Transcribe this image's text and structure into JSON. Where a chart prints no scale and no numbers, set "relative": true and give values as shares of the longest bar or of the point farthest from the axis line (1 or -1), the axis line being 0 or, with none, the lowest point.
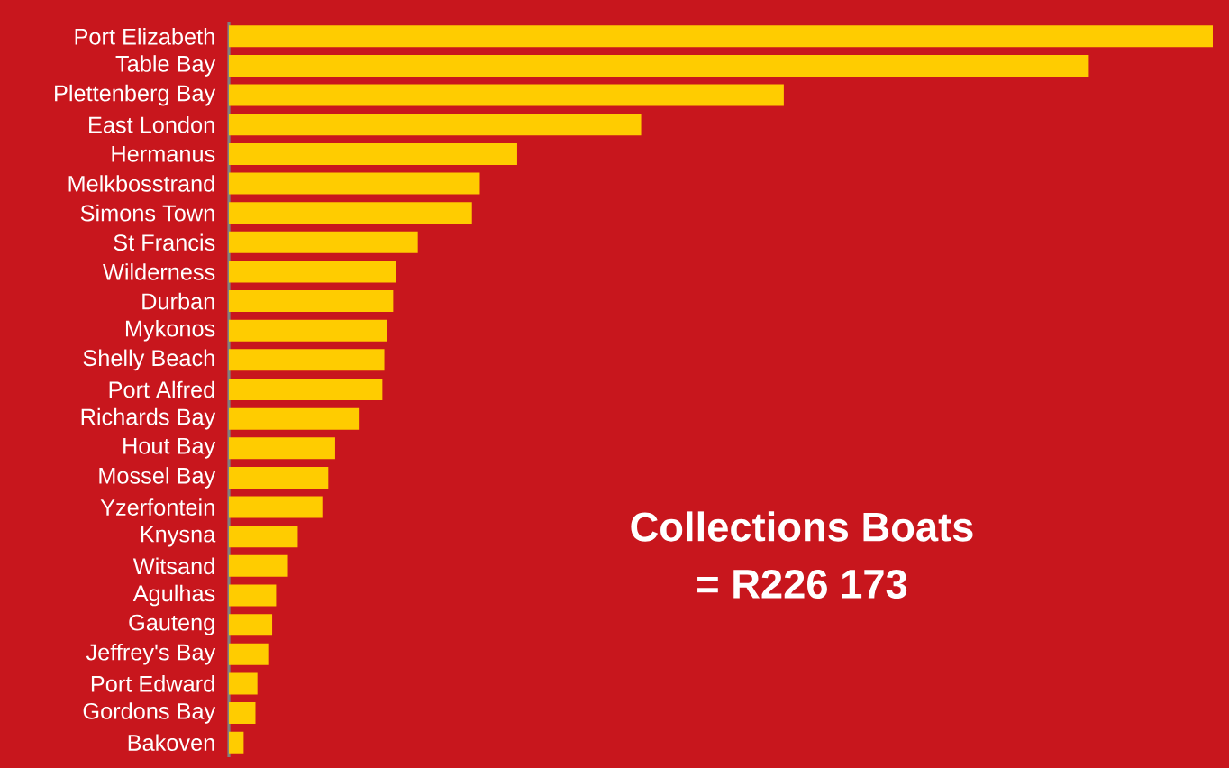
{
  "chart_data": {
    "type": "bar",
    "orientation": "horizontal",
    "relative": true,
    "color": "#ffcc00",
    "categories": [
      "Port Elizabeth",
      "Table Bay",
      "Plettenberg Bay",
      "East London",
      "Hermanus",
      "Melkbosstrand",
      "Simons Town",
      "St Francis",
      "Wilderness",
      "Durban",
      "Mykonos",
      "Shelly Beach",
      "Port Alfred",
      "Richards Bay",
      "Hout Bay",
      "Mossel Bay",
      "Yzerfontein",
      "Knysna",
      "Witsand",
      "Agulhas",
      "Gauteng",
      "Jeffrey's Bay",
      "Port Edward",
      "Gordons Bay",
      "Bakoven"
    ],
    "values": [
      1.0,
      0.874,
      0.564,
      0.419,
      0.293,
      0.255,
      0.247,
      0.192,
      0.17,
      0.167,
      0.161,
      0.158,
      0.156,
      0.132,
      0.108,
      0.101,
      0.095,
      0.07,
      0.06,
      0.048,
      0.044,
      0.04,
      0.029,
      0.027,
      0.015
    ],
    "annotations": [
      "Collections Boats",
      "= R226 173"
    ]
  }
}
